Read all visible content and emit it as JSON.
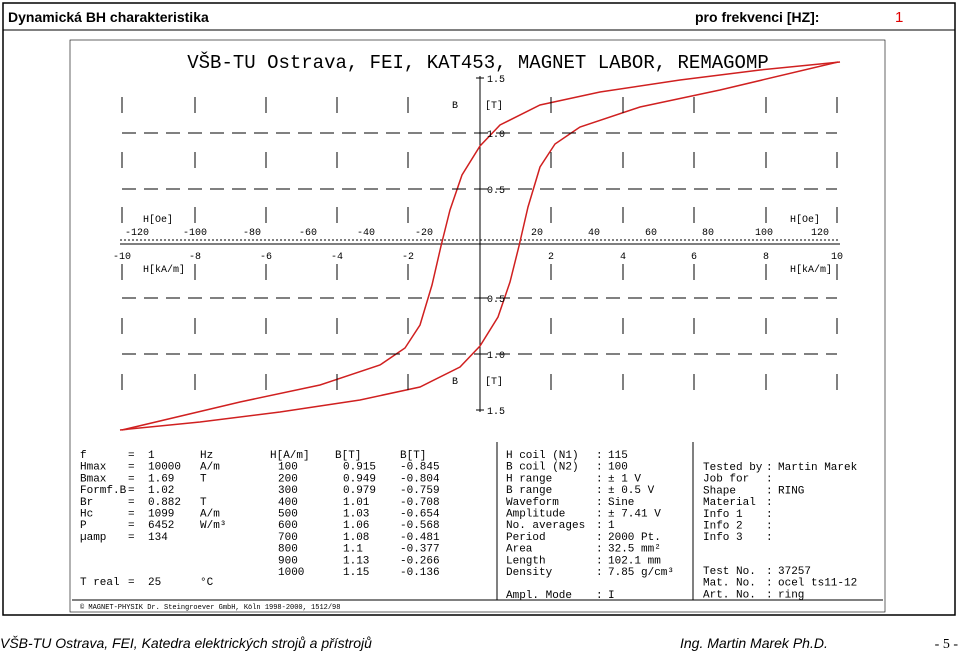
{
  "header": {
    "title": "Dynamická BH charakteristika",
    "frequency_label": "pro frekvenci [HZ]:",
    "frequency": "1"
  },
  "plot": {
    "title": "VŠB-TU Ostrava, FEI, KAT453, MAGNET LABOR, REMAGOMP",
    "b_ticks": [
      "1.5",
      "1.0",
      "0.5",
      "0.5",
      "1.0",
      "1.5"
    ],
    "b_label": "B",
    "b_unit": "[T]",
    "oe_label": "H[Oe]",
    "oe_ticks": [
      "-120",
      "-100",
      "-80",
      "-60",
      "-40",
      "-20",
      "20",
      "40",
      "60",
      "80",
      "100",
      "120"
    ],
    "ka_label": "H[kA/m]",
    "ka_ticks": [
      "-10",
      "-8",
      "-6",
      "-4",
      "-2",
      "2",
      "4",
      "6",
      "8",
      "10"
    ]
  },
  "params": [
    [
      "f",
      "=",
      "1",
      "Hz"
    ],
    [
      "Hmax",
      "=",
      "10000",
      "A/m"
    ],
    [
      "Bmax",
      "=",
      "1.69",
      "T"
    ],
    [
      "Formf.B",
      "=",
      "1.02"
    ],
    [
      "Br",
      "=",
      "0.882",
      "T"
    ],
    [
      "Hc",
      "=",
      "1099",
      "A/m"
    ],
    [
      "P",
      "=",
      "6452",
      "W/m³"
    ],
    [
      "µamp",
      "=",
      "134"
    ]
  ],
  "temperature": [
    "T real",
    "=",
    "25",
    "°C"
  ],
  "table": {
    "header": [
      "H[A/m]",
      "B[T]",
      "B[T]"
    ],
    "rows": [
      [
        "100",
        "0.915",
        "-0.845"
      ],
      [
        "200",
        "0.949",
        "-0.804"
      ],
      [
        "300",
        "0.979",
        "-0.759"
      ],
      [
        "400",
        "1.01",
        "-0.708"
      ],
      [
        "500",
        "1.03",
        "-0.654"
      ],
      [
        "600",
        "1.06",
        "-0.568"
      ],
      [
        "700",
        "1.08",
        "-0.481"
      ],
      [
        "800",
        "1.1",
        "-0.377"
      ],
      [
        "900",
        "1.13",
        "-0.266"
      ],
      [
        "1000",
        "1.15",
        "-0.136"
      ]
    ]
  },
  "settings": [
    [
      "H coil (N1)",
      ":",
      "115"
    ],
    [
      "B coil (N2)",
      ":",
      "100"
    ],
    [
      "H range",
      ":",
      "± 1 V"
    ],
    [
      "B range",
      ":",
      "± 0.5 V"
    ],
    [
      "Waveform",
      ":",
      "Sine"
    ],
    [
      "Amplitude",
      ":",
      "± 7.41 V"
    ],
    [
      "No. averages",
      ":",
      "1"
    ],
    [
      "Period",
      ":",
      "2000 Pt."
    ],
    [
      "Area",
      ":",
      "32.5 mm²"
    ],
    [
      "Length",
      ":",
      "102.1 mm"
    ],
    [
      "Density",
      ":",
      "7.85 g/cm³"
    ]
  ],
  "ampl_mode": [
    "Ampl. Mode",
    ":",
    "I"
  ],
  "info": [
    [
      "Tested by",
      ":",
      "Martin Marek"
    ],
    [
      "Job for",
      ":"
    ],
    [
      "Shape",
      ":",
      "RING"
    ],
    [
      "Material",
      ":"
    ],
    [
      "Info 1",
      ":"
    ],
    [
      "Info 2",
      ":"
    ],
    [
      "Info 3",
      ":"
    ]
  ],
  "sample": [
    [
      "Test No.",
      ":",
      "37257"
    ],
    [
      "Mat. No.",
      ":",
      "ocel ts11-12"
    ],
    [
      "Art. No.",
      ":",
      "ring"
    ]
  ],
  "copyright": "© MAGNET-PHYSIK Dr. Steingroever GmbH, Köln 1998-2000, 1512/98",
  "footer": {
    "left": "VŠB-TU Ostrava, FEI, Katedra elektrických strojů a přístrojů",
    "author": "Ing. Martin Marek Ph.D.",
    "page": "- 5 -"
  }
}
